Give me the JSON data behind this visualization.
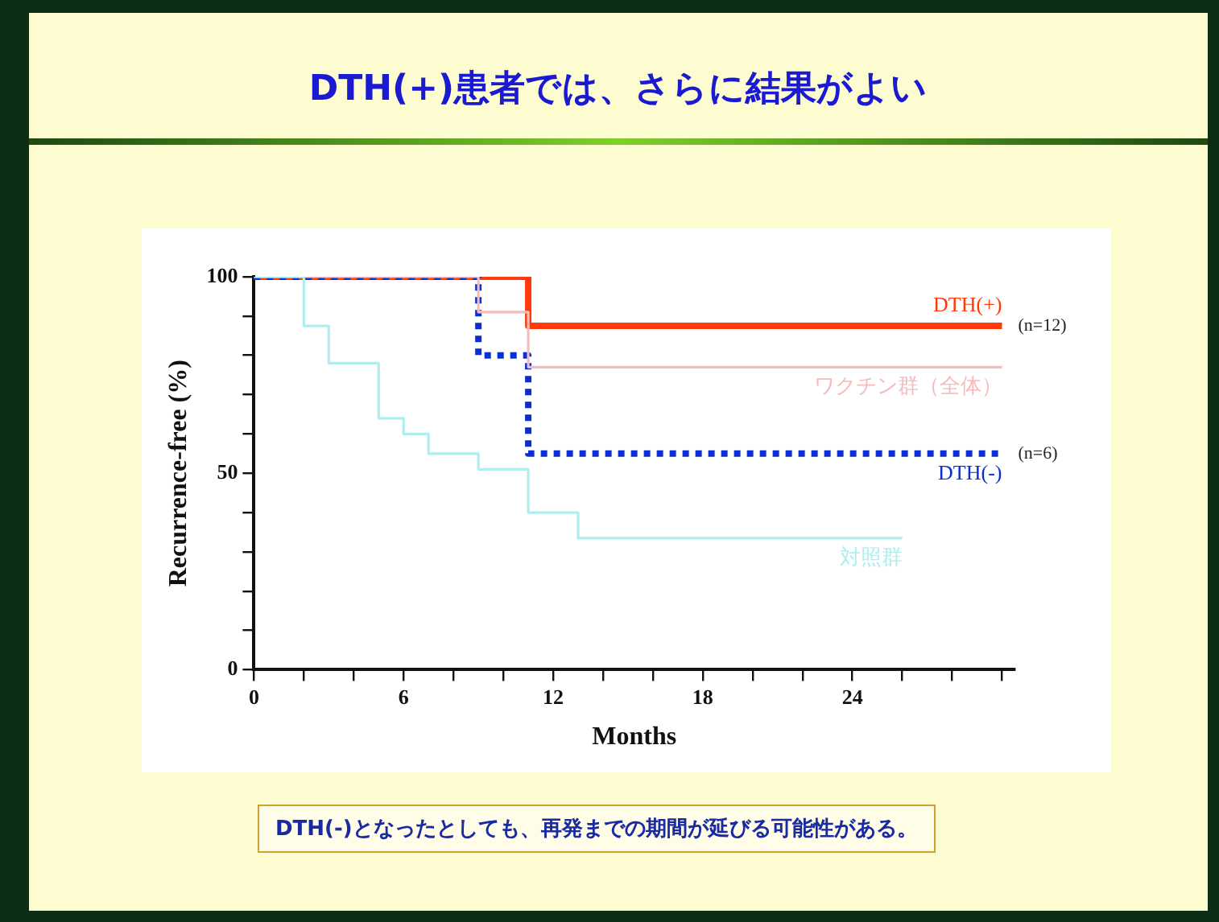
{
  "chart_data": {
    "type": "step",
    "title": "DTH(+)患者では、さらに結果がよい",
    "xlabel": "Months",
    "ylabel": "Recurrence-free (%)",
    "series": [
      {
        "name": "対照群",
        "color": "#aeeeee",
        "x": [
          0,
          2,
          3,
          5,
          6,
          7,
          9,
          11,
          13,
          26
        ],
        "values": [
          100,
          87.5,
          78,
          64,
          60,
          55,
          51,
          40,
          33.5,
          33.5
        ]
      },
      {
        "name": "ワクチン群（全体）",
        "color": "#f4bcbc",
        "x": [
          0,
          9,
          11,
          30
        ],
        "values": [
          100,
          91,
          77,
          77
        ]
      },
      {
        "name": "DTH(-)",
        "color": "#0a2fd0",
        "line_style": "dotted",
        "x": [
          0,
          9,
          11,
          30
        ],
        "values": [
          100,
          80,
          55,
          55
        ]
      },
      {
        "name": "DTH(+)",
        "color": "#ff3a0a",
        "x": [
          0,
          11,
          30
        ],
        "values": [
          100,
          87.5,
          87.5
        ]
      }
    ],
    "xlim": [
      0,
      30.5
    ],
    "ylim": [
      0,
      100
    ],
    "xticks": [
      0,
      {
        "value": 2,
        "label": null
      },
      {
        "value": 4,
        "label": null
      },
      6,
      {
        "value": 8,
        "label": null
      },
      {
        "value": 10,
        "label": null
      },
      12,
      {
        "value": 14,
        "label": null
      },
      {
        "value": 16,
        "label": null
      },
      18,
      {
        "value": 20,
        "label": null
      },
      {
        "value": 22,
        "label": null
      },
      24,
      {
        "value": 26,
        "label": null
      },
      {
        "value": 28,
        "label": null
      },
      {
        "value": 30,
        "label": null
      }
    ],
    "yticks": [
      0,
      {
        "value": 10,
        "label": null
      },
      {
        "value": 20,
        "label": null
      },
      {
        "value": 30,
        "label": null
      },
      {
        "value": 40,
        "label": null
      },
      50,
      {
        "value": 60,
        "label": null
      },
      {
        "value": 70,
        "label": null
      },
      {
        "value": 80,
        "label": null
      },
      {
        "value": 90,
        "label": null
      },
      100
    ],
    "grid": false,
    "legend": false,
    "annotations": [
      {
        "text": "(n=12)",
        "x": 30,
        "y": 87.5
      },
      {
        "text": "(n=6)",
        "x": 30,
        "y": 55
      },
      "DTH(-)となったとしても、再発までの期間が延びる可能性がある。"
    ]
  }
}
